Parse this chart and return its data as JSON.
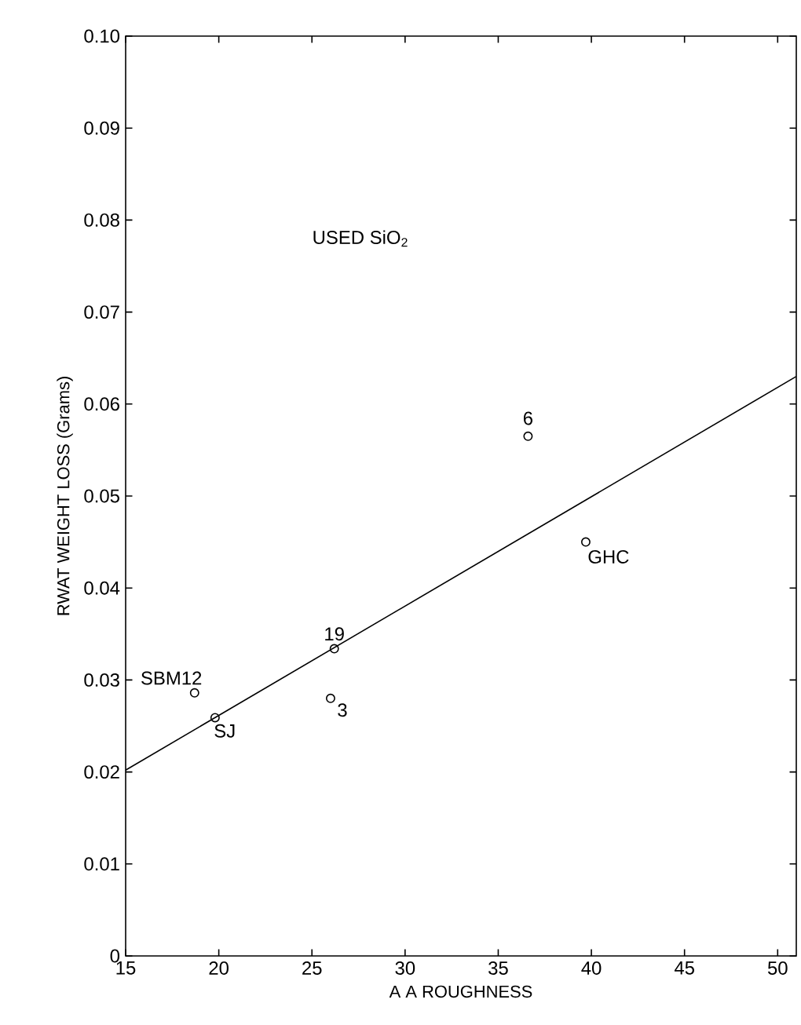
{
  "chart_data": {
    "type": "scatter",
    "xlabel": "A A ROUGHNESS",
    "ylabel": "RWAT WEIGHT LOSS  (Grams)",
    "xlim": [
      15,
      51
    ],
    "ylim": [
      0,
      0.1
    ],
    "xticks": [
      15,
      20,
      25,
      30,
      35,
      40,
      45,
      50
    ],
    "yticks": [
      0,
      0.01,
      0.02,
      0.03,
      0.04,
      0.05,
      0.06,
      0.07,
      0.08,
      0.09,
      {
        "value": 0.1,
        "label": "0.10"
      }
    ],
    "series": [
      {
        "marker": "circle",
        "color": "#000000",
        "x": [
          18.7,
          19.8,
          26.2,
          26.0,
          36.6,
          39.7
        ],
        "values": [
          0.0286,
          0.0259,
          0.0334,
          0.028,
          0.0565,
          0.045
        ]
      },
      {
        "type": "line",
        "color": "#000000",
        "x": [
          15,
          51
        ],
        "values": [
          0.0202,
          0.063
        ]
      }
    ],
    "annotations": [
      "USED SiO$_{2}$",
      {
        "text": "SBM12",
        "x": 18.7,
        "y": 0.0286
      },
      {
        "text": "SJ",
        "x": 19.8,
        "y": 0.0259
      },
      {
        "text": "19",
        "x": 26.2,
        "y": 0.0334
      },
      {
        "text": "3",
        "x": 26.0,
        "y": 0.028
      },
      {
        "text": "6",
        "x": 36.6,
        "y": 0.0565
      },
      {
        "text": "GHC",
        "x": 39.7,
        "y": 0.045
      }
    ]
  }
}
